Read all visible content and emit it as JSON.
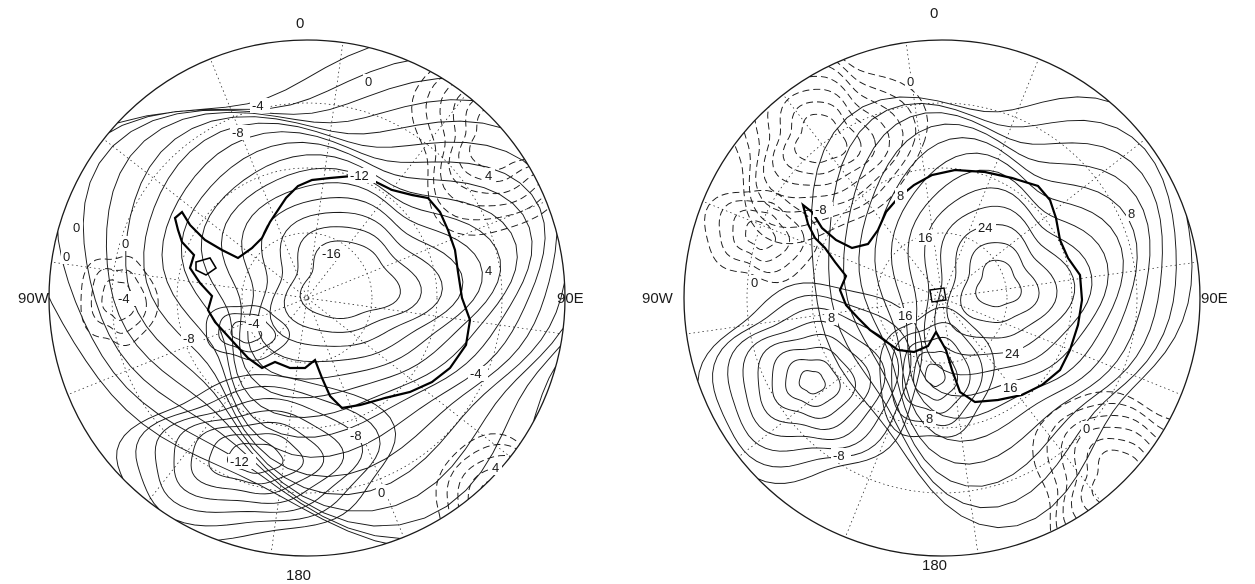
{
  "maps": [
    {
      "id": "left",
      "longitude_labels": {
        "top": "0",
        "right": "90E",
        "bottom": "180",
        "left": "90W"
      },
      "contour_labels": [
        "0",
        "-4",
        "-8",
        "-12",
        "0",
        "4",
        "4",
        "0",
        "0",
        "-16",
        "-4",
        "-4",
        "-4",
        "-8",
        "-8",
        "4",
        "0",
        "-12"
      ]
    },
    {
      "id": "right",
      "longitude_labels": {
        "top": "0",
        "right": "90E",
        "bottom": "180",
        "left": "90W"
      },
      "contour_labels": [
        "0",
        "-8",
        "8",
        "16",
        "24",
        "8",
        "0",
        "8",
        "16",
        "24",
        "16",
        "8",
        "-8",
        "0"
      ]
    }
  ],
  "style": {
    "line_color": "#1a1a1a",
    "coast_color": "#000000",
    "background": "#ffffff"
  }
}
